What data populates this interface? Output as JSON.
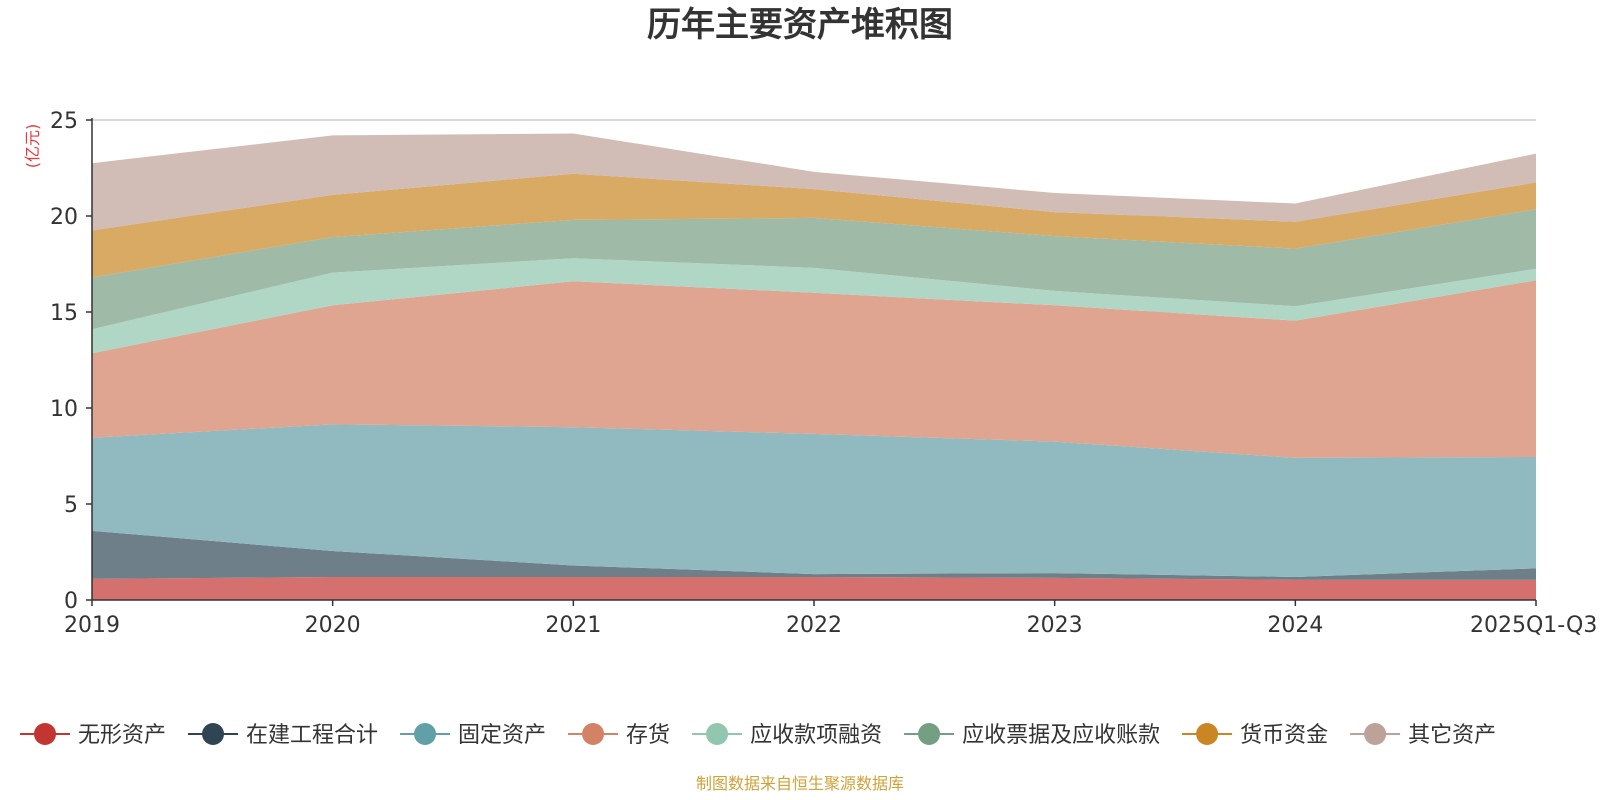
{
  "chart_data": {
    "type": "area",
    "stacked": true,
    "title": "历年主要资产堆积图",
    "unit_label": "(亿元)",
    "source": "制图数据来自恒生聚源数据库",
    "categories": [
      "2019",
      "2020",
      "2021",
      "2022",
      "2023",
      "2024",
      "2025Q1-Q3"
    ],
    "ylim": [
      0,
      25
    ],
    "yticks": [
      0,
      5,
      10,
      15,
      20,
      25
    ],
    "grid": true,
    "legend_position": "bottom",
    "series": [
      {
        "name": "无形资产",
        "color": "#c23531",
        "fill": "#d4706e",
        "values": [
          1.1,
          1.2,
          1.2,
          1.2,
          1.15,
          1.05,
          1.05
        ]
      },
      {
        "name": "在建工程合计",
        "color": "#2f4554",
        "fill": "#6f7f8a",
        "values": [
          2.5,
          1.35,
          0.6,
          0.15,
          0.25,
          0.15,
          0.6
        ]
      },
      {
        "name": "固定资产",
        "color": "#61a0a8",
        "fill": "#90bac0",
        "values": [
          4.85,
          6.6,
          7.2,
          7.3,
          6.85,
          6.2,
          5.8
        ]
      },
      {
        "name": "存货",
        "color": "#d48265",
        "fill": "#dfa590",
        "values": [
          4.4,
          6.2,
          7.6,
          7.35,
          7.1,
          7.15,
          9.2
        ]
      },
      {
        "name": "应收款项融资",
        "color": "#91c7ae",
        "fill": "#b0d7c6",
        "values": [
          1.25,
          1.7,
          1.2,
          1.3,
          0.75,
          0.75,
          0.6
        ]
      },
      {
        "name": "应收票据及应收账款",
        "color": "#749f83",
        "fill": "#9fbaa6",
        "values": [
          2.7,
          1.85,
          2.0,
          2.6,
          2.85,
          3.0,
          3.1
        ]
      },
      {
        "name": "货币资金",
        "color": "#ca8622",
        "fill": "#d9aa63",
        "values": [
          2.45,
          2.2,
          2.4,
          1.5,
          1.25,
          1.4,
          1.4
        ]
      },
      {
        "name": "其它资产",
        "color": "#bda29a",
        "fill": "#d1bcb6",
        "values": [
          3.5,
          3.1,
          2.1,
          0.9,
          1.0,
          0.95,
          1.5
        ]
      }
    ]
  }
}
